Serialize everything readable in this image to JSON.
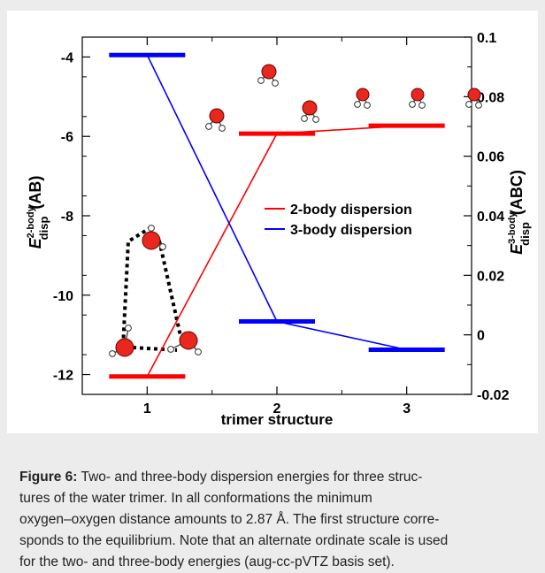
{
  "chart_data": {
    "type": "line",
    "xlabel": "trimer structure",
    "ylabel_left_main": "E",
    "ylabel_left_sup": "2-body",
    "ylabel_left_sub": "disp",
    "ylabel_left_tail": "(AB)",
    "ylabel_right_main": "E",
    "ylabel_right_sup": "3-body",
    "ylabel_right_sub": "disp",
    "ylabel_right_tail": "(ABC)",
    "x": [
      1,
      2,
      3
    ],
    "x_ticks": [
      "1",
      "2",
      "3"
    ],
    "xlim": [
      0.5,
      3.5
    ],
    "ylim_left": [
      -12.5,
      -3.5
    ],
    "ylim_right": [
      -0.02,
      0.1
    ],
    "yticks_left": [
      "-12",
      "-10",
      "-8",
      "-6",
      "-4"
    ],
    "yticks_right": [
      "-0.02",
      "0",
      "0.02",
      "0.04",
      "0.06",
      "0.08",
      "0.1"
    ],
    "series": [
      {
        "name": "2-body dispersion",
        "axis": "left",
        "color": "#ff0000",
        "values": [
          -12.05,
          -5.93,
          -5.73
        ]
      },
      {
        "name": "3-body dispersion",
        "axis": "right",
        "color": "#0000ff",
        "values": [
          0.094,
          0.0045,
          -0.005
        ]
      }
    ],
    "legend_position": "center-right",
    "grid": false
  },
  "caption": {
    "label": "Figure 6:",
    "lines": [
      " Two- and three-body dispersion energies for three struc-",
      "tures of the water trimer. In all conformations the minimum",
      "oxygen–oxygen distance amounts to 2.87 Å. The first structure corre-",
      "sponds to the equilibrium. Note that an alternate ordinate scale is used",
      "for the two- and three-body energies (aug-cc-pVTZ basis set)."
    ]
  },
  "colors": {
    "oxygen": "#e8281e",
    "hydrogen": "#ffffff",
    "frame": "#ececec"
  }
}
